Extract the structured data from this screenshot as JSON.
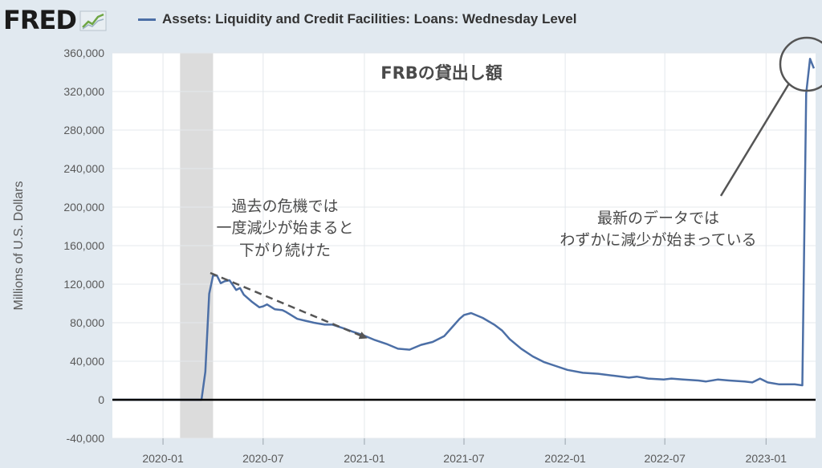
{
  "header": {
    "logo_text": "FRED",
    "legend_label": "Assets: Liquidity and Credit Facilities: Loans: Wednesday Level"
  },
  "colors": {
    "series": "#4c6fa6",
    "background": "#e1e9f0",
    "plot": "#ffffff",
    "recession": "#dcdcdc"
  },
  "chart_data": {
    "type": "line",
    "title": "FRBの貸出し額",
    "xlabel": "",
    "ylabel": "Millions of U.S. Dollars",
    "ylim": [
      -40000,
      360000
    ],
    "xlim": [
      "2019-10-01",
      "2023-04-01"
    ],
    "yticks": [
      -40000,
      0,
      40000,
      80000,
      120000,
      160000,
      200000,
      240000,
      280000,
      320000,
      360000
    ],
    "ytick_labels": [
      "-40,000",
      "0",
      "40,000",
      "80,000",
      "120,000",
      "160,000",
      "200,000",
      "240,000",
      "280,000",
      "320,000",
      "360,000"
    ],
    "xticks": [
      "2020-01-01",
      "2020-07-01",
      "2021-01-01",
      "2021-07-01",
      "2022-01-01",
      "2022-07-01",
      "2023-01-01"
    ],
    "xtick_labels": [
      "2020-01",
      "2020-07",
      "2021-01",
      "2021-07",
      "2022-01",
      "2022-07",
      "2023-01"
    ],
    "grid": true,
    "legend": "top-left",
    "recession": [
      "2020-02-01",
      "2020-04-01"
    ],
    "series": [
      {
        "name": "Assets: Liquidity and Credit Facilities: Loans: Wednesday Level",
        "x": [
          "2019-10-02",
          "2020-03-04",
          "2020-03-11",
          "2020-03-18",
          "2020-03-25",
          "2020-04-01",
          "2020-04-08",
          "2020-04-15",
          "2020-04-22",
          "2020-05-01",
          "2020-05-13",
          "2020-05-20",
          "2020-05-27",
          "2020-06-10",
          "2020-06-24",
          "2020-07-01",
          "2020-07-08",
          "2020-07-22",
          "2020-08-05",
          "2020-08-12",
          "2020-09-01",
          "2020-09-16",
          "2020-10-01",
          "2020-10-21",
          "2020-11-04",
          "2020-11-25",
          "2020-12-09",
          "2020-12-30",
          "2021-01-20",
          "2021-02-10",
          "2021-03-03",
          "2021-03-24",
          "2021-04-14",
          "2021-05-05",
          "2021-05-26",
          "2021-06-09",
          "2021-06-23",
          "2021-07-01",
          "2021-07-14",
          "2021-08-04",
          "2021-08-25",
          "2021-09-08",
          "2021-09-22",
          "2021-10-13",
          "2021-11-03",
          "2021-11-24",
          "2021-12-15",
          "2022-01-05",
          "2022-02-02",
          "2022-03-02",
          "2022-03-30",
          "2022-04-27",
          "2022-05-11",
          "2022-06-01",
          "2022-06-29",
          "2022-07-13",
          "2022-08-03",
          "2022-08-31",
          "2022-09-14",
          "2022-10-05",
          "2022-10-26",
          "2022-11-23",
          "2022-12-07",
          "2022-12-21",
          "2023-01-04",
          "2023-01-25",
          "2023-02-15",
          "2023-02-22",
          "2023-03-08",
          "2023-03-15",
          "2023-03-22",
          "2023-03-29"
        ],
        "values": [
          0,
          0,
          0,
          29000,
          110000,
          129000,
          129000,
          121000,
          123000,
          124000,
          114000,
          116000,
          109000,
          102000,
          96000,
          97000,
          99000,
          94000,
          93000,
          91000,
          84000,
          82000,
          80000,
          78000,
          78000,
          74000,
          71000,
          67000,
          62000,
          58000,
          53000,
          52000,
          57000,
          60000,
          66000,
          75000,
          84000,
          88000,
          90000,
          85000,
          78000,
          72000,
          63000,
          53000,
          45000,
          39000,
          35000,
          31000,
          28000,
          27000,
          25000,
          23000,
          24000,
          22000,
          21000,
          22000,
          21000,
          20000,
          19000,
          21000,
          20000,
          19000,
          18000,
          22000,
          18000,
          16000,
          16000,
          16000,
          15000,
          318000,
          354000,
          344000
        ]
      }
    ],
    "annotations": [
      {
        "lines": [
          "過去の危機では",
          "一度減少が始まると",
          "下がり続けた"
        ]
      },
      {
        "lines": [
          "最新のデータでは",
          "わずかに減少が始まっている"
        ]
      }
    ]
  }
}
